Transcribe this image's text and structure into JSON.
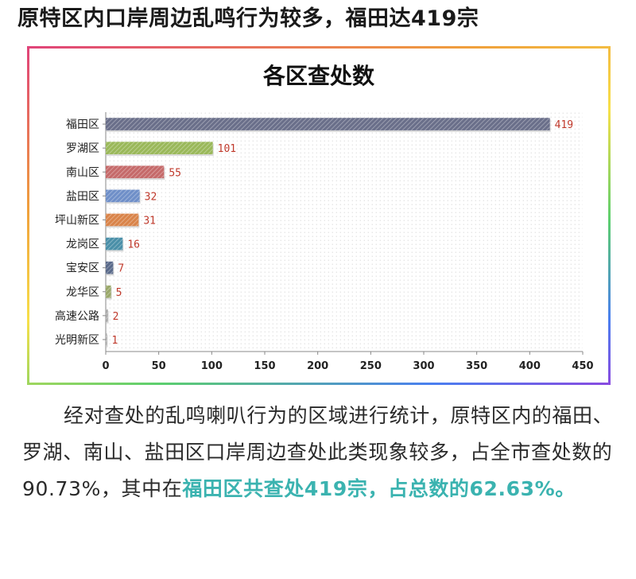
{
  "headline": "原特区内口岸周边乱鸣行为较多，福田达419宗",
  "chart_data": {
    "type": "bar",
    "orientation": "horizontal",
    "title": "各区查处数",
    "categories": [
      "福田区",
      "罗湖区",
      "南山区",
      "盐田区",
      "坪山新区",
      "龙岗区",
      "宝安区",
      "龙华区",
      "高速公路",
      "光明新区"
    ],
    "values": [
      419,
      101,
      55,
      32,
      31,
      16,
      7,
      5,
      2,
      1
    ],
    "value_labels": [
      "419",
      "101",
      "55",
      "32",
      "31",
      "16",
      "7",
      "5",
      "2",
      "1"
    ],
    "bar_colors": [
      "#6a6f8a",
      "#9ab85a",
      "#c56a6a",
      "#6f8fc8",
      "#d9844a",
      "#4a8fa8",
      "#5a6a8a",
      "#9aa86a",
      "#aaaaaa",
      "#aaaaaa"
    ],
    "xlim": [
      0,
      450
    ],
    "xticks": [
      0,
      50,
      100,
      150,
      200,
      250,
      300,
      350,
      400,
      450
    ],
    "xtick_labels": [
      "0",
      "50",
      "100",
      "150",
      "200",
      "250",
      "300",
      "350",
      "400",
      "450"
    ],
    "grid": false,
    "plot_background": "dotted",
    "label_color": "#c0392b"
  },
  "paragraph": {
    "normal": "经对查处的乱鸣喇叭行为的区域进行统计，原特区内的福田、罗湖、南山、盐田区口岸周边查处此类现象较多，占全市查处数的90.73%，其中在",
    "highlight": "福田区共查处419宗，占总数的62.63%。"
  }
}
